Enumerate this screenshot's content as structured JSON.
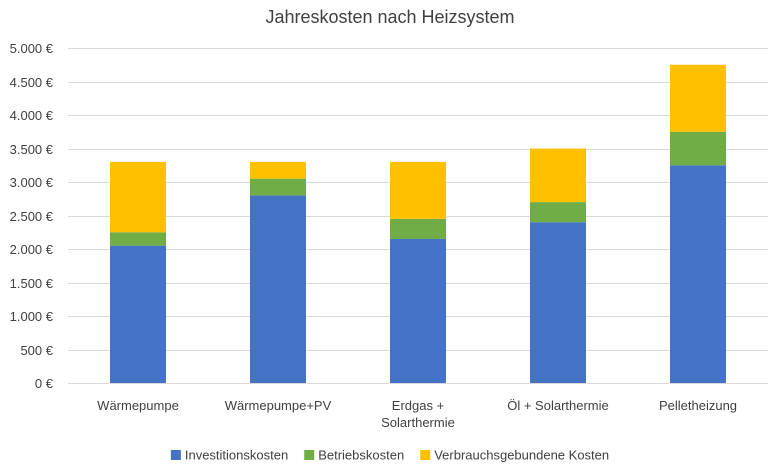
{
  "chart_data": {
    "type": "bar",
    "stacked": true,
    "title": "Jahreskosten nach Heizsystem",
    "xlabel": "",
    "ylabel": "",
    "categories": [
      [
        "Wärmepumpe"
      ],
      [
        "Wärmepumpe+PV"
      ],
      [
        "Erdgas +",
        "Solarthermie"
      ],
      [
        "Öl + Solarthermie"
      ],
      [
        "Pelletheizung"
      ]
    ],
    "series": [
      {
        "name": "Investitionskosten",
        "color": "#4472C4",
        "values": [
          2050,
          2800,
          2150,
          2400,
          3250
        ]
      },
      {
        "name": "Betriebskosten",
        "color": "#70AD47",
        "values": [
          200,
          250,
          300,
          300,
          500
        ]
      },
      {
        "name": "Verbrauchsgebundene Kosten",
        "color": "#FFC000",
        "values": [
          1050,
          250,
          850,
          800,
          1000
        ]
      }
    ],
    "ylim": [
      0,
      5000
    ],
    "yticks": [
      {
        "value": 0,
        "label": "0 €"
      },
      {
        "value": 500,
        "label": "500 €"
      },
      {
        "value": 1000,
        "label": "1.000 €"
      },
      {
        "value": 1500,
        "label": "1.500 €"
      },
      {
        "value": 2000,
        "label": "2.000 €"
      },
      {
        "value": 2500,
        "label": "2.500 €"
      },
      {
        "value": 3000,
        "label": "3.000 €"
      },
      {
        "value": 3500,
        "label": "3.500 €"
      },
      {
        "value": 4000,
        "label": "4.000 €"
      },
      {
        "value": 4500,
        "label": "4.500 €"
      },
      {
        "value": 5000,
        "label": "5.000 €"
      }
    ],
    "grid": true,
    "legend_position": "bottom"
  }
}
